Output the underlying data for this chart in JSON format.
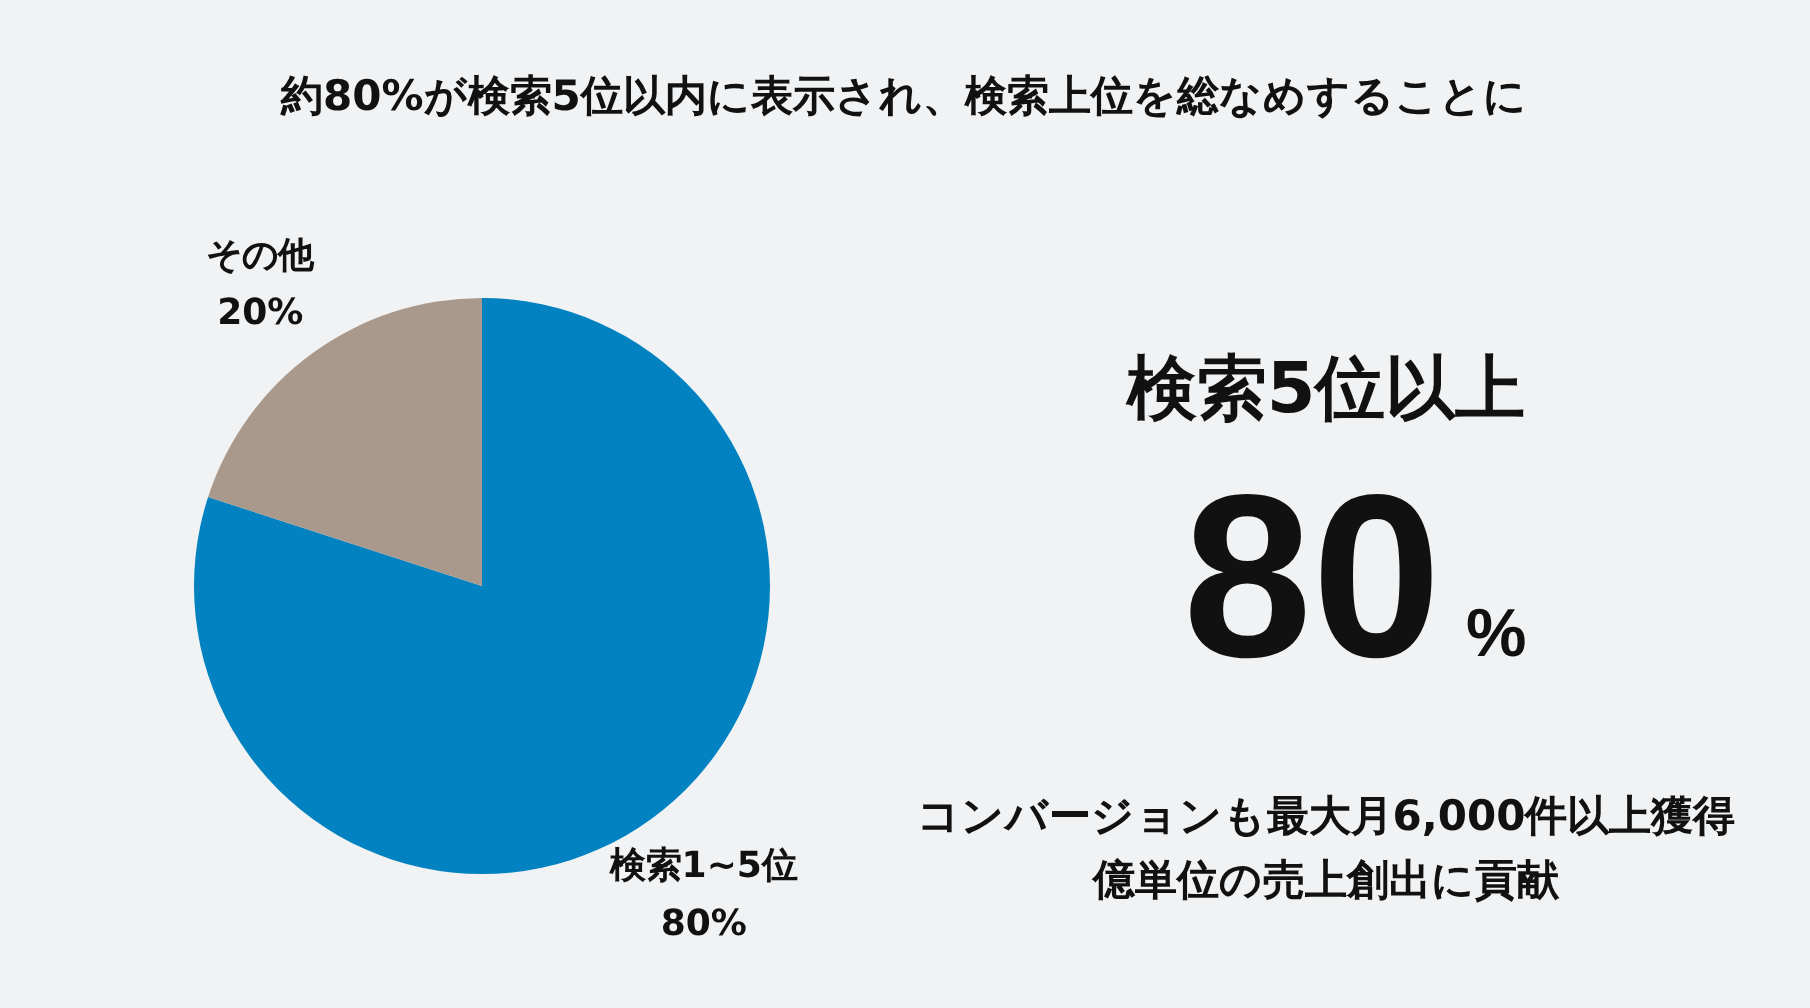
{
  "chart_data": [
    {
      "type": "pie",
      "title": "約80%が検索5位以内に表示され、検索上位を総なめすることに",
      "categories": [
        "検索1~5位",
        "その他"
      ],
      "values": [
        80,
        20
      ],
      "colors": [
        "#0282c0",
        "#a8998c"
      ],
      "value_labels": [
        "80%",
        "20%"
      ]
    },
    {
      "type": "other",
      "title": "検索5位以上",
      "annotations": [
        "80%",
        "コンバージョンも最大月6,000件以上獲得",
        "億単位の売上創出に貢献"
      ]
    }
  ]
}
